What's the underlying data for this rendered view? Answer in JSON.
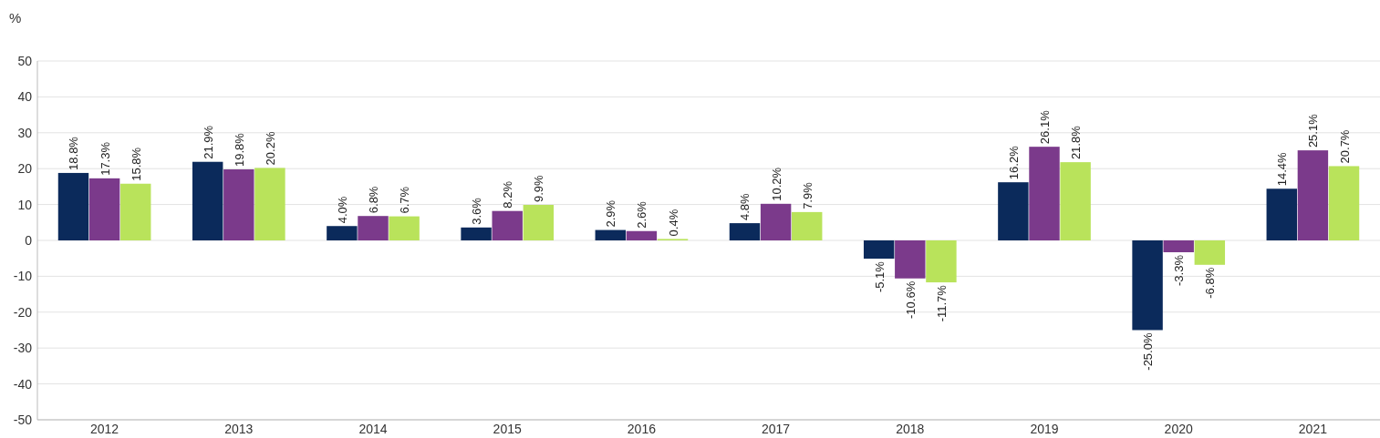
{
  "chart_data": {
    "type": "bar",
    "ylabel": "%",
    "categories": [
      "2012",
      "2013",
      "2014",
      "2015",
      "2016",
      "2017",
      "2018",
      "2019",
      "2020",
      "2021"
    ],
    "series": [
      {
        "color": "#0b2a5b",
        "values": [
          18.8,
          21.9,
          4.0,
          3.6,
          2.9,
          4.8,
          -5.1,
          16.2,
          -25.0,
          14.4
        ],
        "value_labels": [
          "18.8%",
          "21.9%",
          "4.0%",
          "3.6%",
          "2.9%",
          "4.8%",
          "-5.1%",
          "16.2%",
          "-25.0%",
          "14.4%"
        ]
      },
      {
        "color": "#7b3a8b",
        "values": [
          17.3,
          19.8,
          6.8,
          8.2,
          2.6,
          10.2,
          -10.6,
          26.1,
          -3.3,
          25.1
        ],
        "value_labels": [
          "17.3%",
          "19.8%",
          "6.8%",
          "8.2%",
          "2.6%",
          "10.2%",
          "-10.6%",
          "26.1%",
          "-3.3%",
          "25.1%"
        ]
      },
      {
        "color": "#b9e35b",
        "values": [
          15.8,
          20.2,
          6.7,
          9.9,
          0.4,
          7.9,
          -11.7,
          21.8,
          -6.8,
          20.7
        ],
        "value_labels": [
          "15.8%",
          "20.2%",
          "6.7%",
          "9.9%",
          "0.4%",
          "7.9%",
          "-11.7%",
          "21.8%",
          "-6.8%",
          "20.7%"
        ]
      }
    ],
    "ylim": [
      -50,
      50
    ],
    "yticks": [
      -50,
      -40,
      -30,
      -20,
      -10,
      0,
      10,
      20,
      30,
      40,
      50
    ],
    "grid": "y"
  }
}
